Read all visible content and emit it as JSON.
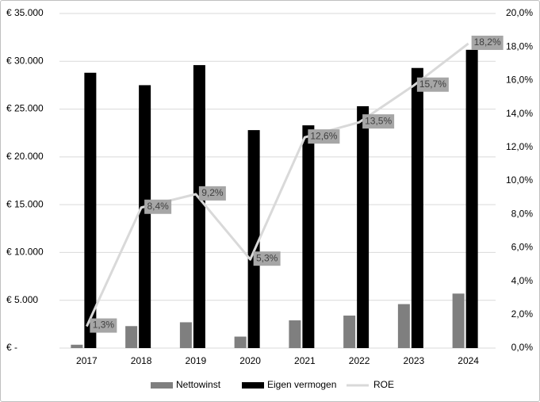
{
  "chart_data": {
    "type": "bar",
    "categories": [
      "2017",
      "2018",
      "2019",
      "2020",
      "2021",
      "2022",
      "2023",
      "2024"
    ],
    "series": [
      {
        "name": "Nettowinst",
        "type": "bar",
        "axis": "left",
        "color": "#7f7f7f",
        "values": [
          350,
          2300,
          2700,
          1200,
          2900,
          3400,
          4600,
          5700
        ]
      },
      {
        "name": "Eigen vermogen",
        "type": "bar",
        "axis": "left",
        "color": "#000000",
        "values": [
          28800,
          27500,
          29600,
          22800,
          23300,
          25300,
          29300,
          31200
        ]
      },
      {
        "name": "ROE",
        "type": "line",
        "axis": "right",
        "color": "#d9d9d9",
        "values": [
          1.3,
          8.4,
          9.2,
          5.3,
          12.6,
          13.5,
          15.7,
          18.2
        ],
        "labels": [
          "1,3%",
          "8,4%",
          "9,2%",
          "5,3%",
          "12,6%",
          "13,5%",
          "15,7%",
          "18,2%"
        ]
      }
    ],
    "y_left": {
      "range": [
        0,
        35000
      ],
      "tick_values": [
        0,
        5000,
        10000,
        15000,
        20000,
        25000,
        30000,
        35000
      ],
      "tick_labels": [
        "€ -",
        "€ 5.000",
        "€ 10.000",
        "€ 15.000",
        "€ 20.000",
        "€ 25.000",
        "€ 30.000",
        "€ 35.000"
      ]
    },
    "y_right": {
      "range": [
        0,
        20
      ],
      "tick_values": [
        0,
        2,
        4,
        6,
        8,
        10,
        12,
        14,
        16,
        18,
        20
      ],
      "tick_labels": [
        "0,0%",
        "2,0%",
        "4,0%",
        "6,0%",
        "8,0%",
        "10,0%",
        "12,0%",
        "14,0%",
        "16,0%",
        "18,0%",
        "20,0%"
      ]
    },
    "grid": true,
    "legend_position": "bottom",
    "data_label_background": "#a6a6a6"
  }
}
